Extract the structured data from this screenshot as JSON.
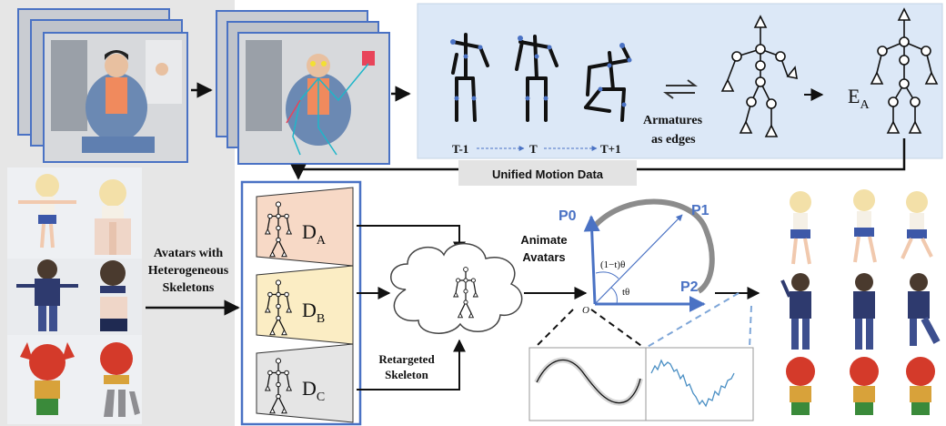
{
  "labels": {
    "time_prev": "T-1",
    "time_curr": "T",
    "time_next": "T+1",
    "armatures_line1": "Armatures",
    "armatures_line2": "as edges",
    "encoder": "E",
    "encoder_sub": "A",
    "unified": "Unified Motion Data",
    "avatars_line1": "Avatars with",
    "avatars_line2": "Heterogeneous",
    "avatars_line3": "Skeletons",
    "decoder_a": "D",
    "decoder_a_sub": "A",
    "decoder_b": "D",
    "decoder_b_sub": "B",
    "decoder_c": "D",
    "decoder_c_sub": "C",
    "retargeted_line1": "Retargeted",
    "retargeted_line2": "Skeleton",
    "animate_line1": "Animate",
    "animate_line2": "Avatars",
    "p0": "P0",
    "p1": "P1",
    "p2": "P2",
    "origin": "O",
    "angle_outer": "(1−t)θ",
    "angle_inner": "tθ"
  },
  "colors": {
    "accent_blue": "#4a72c4",
    "panel_blue": "#dce8f7",
    "arc_gray": "#8c8c8c",
    "decoder_a_fill": "#f7d9c6",
    "decoder_b_fill": "#fbedc4",
    "decoder_c_fill": "#e5e5e5",
    "unified_fill": "#e3e3e3"
  }
}
